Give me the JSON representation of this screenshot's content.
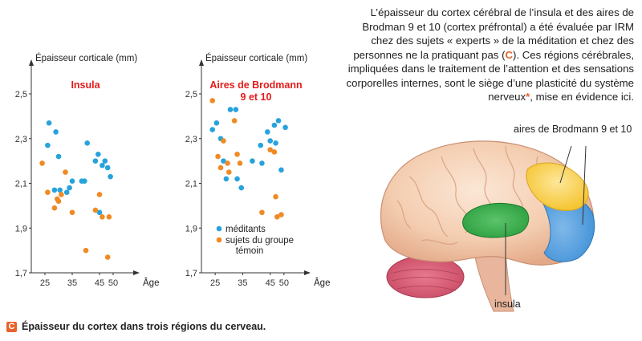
{
  "description": {
    "text_before_c": "L’épaisseur du cortex cérébral de l’insula et des aires de Brodman 9 et 10 (cortex préfrontal) a été évaluée par IRM chez des sujets « experts » de la méditation et chez des personnes ne la pratiquant pas (",
    "c_label": "C",
    "text_after_c": "). Ces régions cérébrales, impliquées dans le traitement de l’attention et des sensations corporelles internes, sont le siège d’une plasticité du système nerveux",
    "star": "*",
    "text_end": ", mise en évidence ici."
  },
  "brain": {
    "label_brodmann": "aires de Brodmann 9 et 10",
    "label_insula": "insula"
  },
  "caption": {
    "box": "C",
    "text": "Épaisseur du cortex dans trois régions du cerveau."
  },
  "colors": {
    "meditants": "#27a3dc",
    "controls": "#f08a24",
    "title": "#e31b1b",
    "accent": "#e8622a",
    "insula": "#2c9f3f",
    "brodmann_yellow": "#f5c531",
    "brodmann_blue": "#3d8fd6"
  },
  "chart_data": [
    {
      "type": "scatter",
      "title": "Insula",
      "ylabel": "Épaisseur corticale (mm)",
      "xlabel": "Âge",
      "xlim": [
        20,
        55
      ],
      "ylim": [
        1.7,
        2.5
      ],
      "xticks": [
        25,
        35,
        45,
        50
      ],
      "yticks": [
        "1,7",
        "1,9",
        "2,1",
        "2,3",
        "2,5"
      ],
      "series": [
        {
          "name": "méditants",
          "points": [
            [
              26.0,
              2.27
            ],
            [
              26.5,
              2.37
            ],
            [
              28.5,
              2.07
            ],
            [
              29.0,
              2.33
            ],
            [
              30.0,
              2.22
            ],
            [
              30.5,
              2.07
            ],
            [
              33.0,
              2.06
            ],
            [
              34.0,
              2.08
            ],
            [
              35.0,
              2.11
            ],
            [
              38.5,
              2.11
            ],
            [
              39.5,
              2.11
            ],
            [
              40.5,
              2.28
            ],
            [
              43.5,
              2.2
            ],
            [
              44.5,
              2.23
            ],
            [
              45.0,
              1.97
            ],
            [
              46.0,
              2.18
            ],
            [
              47.0,
              2.2
            ],
            [
              48.0,
              2.17
            ],
            [
              49.0,
              2.13
            ]
          ]
        },
        {
          "name": "sujets du groupe témoin",
          "points": [
            [
              24.0,
              2.19
            ],
            [
              26.0,
              2.06
            ],
            [
              28.5,
              1.99
            ],
            [
              29.5,
              2.03
            ],
            [
              30.0,
              2.02
            ],
            [
              31.0,
              2.05
            ],
            [
              32.5,
              2.15
            ],
            [
              35.0,
              1.97
            ],
            [
              40.0,
              1.8
            ],
            [
              43.5,
              1.98
            ],
            [
              45.0,
              2.05
            ],
            [
              46.0,
              1.95
            ],
            [
              48.0,
              1.77
            ],
            [
              48.5,
              1.95
            ]
          ]
        }
      ],
      "grid": false
    },
    {
      "type": "scatter",
      "title": "Aires de Brodmann 9 et 10",
      "title_lines": [
        "Aires de Brodmann",
        "9 et 10"
      ],
      "ylabel": "Épaisseur corticale (mm)",
      "xlabel": "Âge",
      "xlim": [
        20,
        55
      ],
      "ylim": [
        1.7,
        2.5
      ],
      "xticks": [
        25,
        35,
        45,
        50
      ],
      "yticks": [
        "1,7",
        "1,9",
        "2,1",
        "2,3",
        "2,5"
      ],
      "legend": [
        "méditants",
        "sujets du groupe témoin"
      ],
      "legend_placement": "bottom-right",
      "series": [
        {
          "name": "méditants",
          "points": [
            [
              24.0,
              2.34
            ],
            [
              25.5,
              2.37
            ],
            [
              27.0,
              2.3
            ],
            [
              28.0,
              2.2
            ],
            [
              29.0,
              2.12
            ],
            [
              30.5,
              2.43
            ],
            [
              32.5,
              2.43
            ],
            [
              33.0,
              2.12
            ],
            [
              34.5,
              2.08
            ],
            [
              38.5,
              2.2
            ],
            [
              41.5,
              2.27
            ],
            [
              42.0,
              2.19
            ],
            [
              44.0,
              2.33
            ],
            [
              45.0,
              2.29
            ],
            [
              46.5,
              2.36
            ],
            [
              47.0,
              2.28
            ],
            [
              48.0,
              2.38
            ],
            [
              49.0,
              2.16
            ],
            [
              50.5,
              2.35
            ]
          ]
        },
        {
          "name": "sujets du groupe témoin",
          "points": [
            [
              24.0,
              2.47
            ],
            [
              26.0,
              2.22
            ],
            [
              27.0,
              2.17
            ],
            [
              28.0,
              2.29
            ],
            [
              29.5,
              2.19
            ],
            [
              30.0,
              2.15
            ],
            [
              32.0,
              2.38
            ],
            [
              33.0,
              2.23
            ],
            [
              34.0,
              2.19
            ],
            [
              42.0,
              1.97
            ],
            [
              45.0,
              2.25
            ],
            [
              46.5,
              2.24
            ],
            [
              47.0,
              2.04
            ],
            [
              47.5,
              1.95
            ],
            [
              49.0,
              1.96
            ]
          ]
        }
      ],
      "grid": false
    }
  ]
}
